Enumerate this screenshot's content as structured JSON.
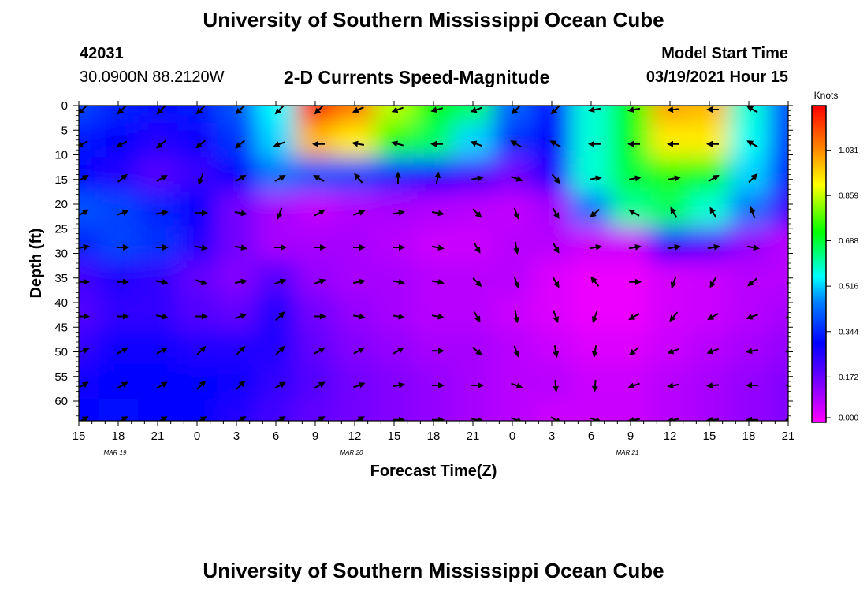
{
  "header": {
    "title": "University of Southern Mississippi Ocean Cube",
    "footer_title": "University of Southern Mississippi Ocean Cube",
    "station_id": "42031",
    "station_coords": "30.0900N 88.2120W",
    "plot_title": "2-D Currents Speed-Magnitude",
    "model_start_label": "Model Start Time",
    "model_start_value": "03/19/2021 Hour 15"
  },
  "chart_data": {
    "type": "heatmap",
    "title": "2-D Currents Speed-Magnitude",
    "xlabel": "Forecast Time(Z)",
    "ylabel": "Depth (ft)",
    "x_tick_labels": [
      "15",
      "18",
      "21",
      "0",
      "3",
      "6",
      "9",
      "12",
      "15",
      "18",
      "21",
      "0",
      "3",
      "6",
      "9",
      "12",
      "15",
      "18",
      "21"
    ],
    "x_date_labels": [
      {
        "label": "MAR 19",
        "tick_index": 1
      },
      {
        "label": "MAR 20",
        "tick_index": 7
      },
      {
        "label": "MAR 21",
        "tick_index": 14
      }
    ],
    "y_ticks": [
      0,
      5,
      10,
      15,
      20,
      25,
      30,
      35,
      40,
      45,
      50,
      55,
      60
    ],
    "ylim": [
      0,
      64
    ],
    "y_inverted": true,
    "colorbar": {
      "label": "Knots",
      "ticks": [
        "1.031",
        "0.859",
        "0.688",
        "0.516",
        "0.344",
        "0.172",
        "0.000"
      ],
      "range": [
        0,
        1.2
      ]
    },
    "depth_samples": [
      0,
      7,
      14,
      21,
      28,
      35,
      42,
      49,
      56,
      63
    ],
    "time_samples_hours": [
      0,
      3,
      6,
      9,
      12,
      15,
      18,
      21,
      24,
      27,
      30,
      33,
      36,
      39,
      42,
      45,
      48,
      51,
      54
    ],
    "speed_knots": [
      [
        0.38,
        0.34,
        0.32,
        0.33,
        0.4,
        0.55,
        1.15,
        1.05,
        0.85,
        0.72,
        0.66,
        0.42,
        0.33,
        0.58,
        0.72,
        1.0,
        0.98,
        0.58,
        0.4
      ],
      [
        0.33,
        0.3,
        0.26,
        0.28,
        0.36,
        0.52,
        0.98,
        0.92,
        0.74,
        0.66,
        0.52,
        0.36,
        0.3,
        0.58,
        0.7,
        0.92,
        0.92,
        0.56,
        0.38
      ],
      [
        0.3,
        0.26,
        0.2,
        0.23,
        0.3,
        0.44,
        0.4,
        0.38,
        0.34,
        0.3,
        0.22,
        0.16,
        0.26,
        0.58,
        0.68,
        0.74,
        0.7,
        0.52,
        0.34
      ],
      [
        0.4,
        0.38,
        0.34,
        0.3,
        0.16,
        0.1,
        0.07,
        0.09,
        0.1,
        0.09,
        0.08,
        0.07,
        0.1,
        0.44,
        0.62,
        0.66,
        0.58,
        0.44,
        0.22
      ],
      [
        0.34,
        0.38,
        0.36,
        0.26,
        0.16,
        0.1,
        0.1,
        0.1,
        0.08,
        0.06,
        0.06,
        0.08,
        0.08,
        0.06,
        0.06,
        0.26,
        0.2,
        0.12,
        0.08
      ],
      [
        0.22,
        0.26,
        0.24,
        0.18,
        0.14,
        0.2,
        0.12,
        0.1,
        0.1,
        0.08,
        0.08,
        0.08,
        0.04,
        0.02,
        0.02,
        0.05,
        0.06,
        0.08,
        0.08
      ],
      [
        0.2,
        0.24,
        0.24,
        0.2,
        0.18,
        0.26,
        0.16,
        0.12,
        0.1,
        0.08,
        0.08,
        0.06,
        0.04,
        0.02,
        0.02,
        0.05,
        0.06,
        0.08,
        0.1
      ],
      [
        0.24,
        0.28,
        0.28,
        0.26,
        0.26,
        0.26,
        0.18,
        0.14,
        0.12,
        0.1,
        0.1,
        0.08,
        0.06,
        0.04,
        0.04,
        0.06,
        0.08,
        0.1,
        0.12
      ],
      [
        0.28,
        0.3,
        0.3,
        0.3,
        0.28,
        0.24,
        0.2,
        0.16,
        0.14,
        0.12,
        0.1,
        0.08,
        0.08,
        0.06,
        0.06,
        0.08,
        0.1,
        0.12,
        0.14
      ],
      [
        0.3,
        0.32,
        0.3,
        0.3,
        0.26,
        0.22,
        0.18,
        0.16,
        0.14,
        0.12,
        0.1,
        0.08,
        0.06,
        0.06,
        0.06,
        0.08,
        0.1,
        0.12,
        0.14
      ]
    ],
    "direction_deg": [
      [
        225,
        225,
        225,
        225,
        225,
        225,
        225,
        245,
        250,
        255,
        250,
        225,
        225,
        260,
        260,
        265,
        270,
        300,
        315
      ],
      [
        240,
        240,
        230,
        230,
        230,
        250,
        270,
        280,
        285,
        270,
        290,
        300,
        300,
        270,
        270,
        270,
        270,
        300,
        320
      ],
      [
        60,
        50,
        60,
        200,
        60,
        60,
        300,
        320,
        0,
        10,
        80,
        110,
        140,
        80,
        80,
        80,
        60,
        45,
        30
      ],
      [
        60,
        70,
        80,
        90,
        100,
        200,
        60,
        70,
        80,
        100,
        135,
        160,
        150,
        230,
        300,
        330,
        330,
        340,
        350
      ],
      [
        80,
        90,
        90,
        100,
        100,
        90,
        90,
        90,
        90,
        100,
        150,
        170,
        150,
        80,
        80,
        80,
        80,
        100,
        100
      ],
      [
        90,
        90,
        100,
        110,
        80,
        70,
        70,
        80,
        100,
        100,
        135,
        160,
        150,
        320,
        90,
        200,
        210,
        230,
        250
      ],
      [
        90,
        90,
        100,
        90,
        70,
        45,
        90,
        100,
        100,
        100,
        150,
        170,
        160,
        200,
        240,
        220,
        240,
        250,
        260
      ],
      [
        70,
        60,
        60,
        45,
        45,
        45,
        60,
        60,
        60,
        90,
        130,
        160,
        170,
        190,
        230,
        250,
        250,
        260,
        260
      ],
      [
        60,
        60,
        60,
        45,
        45,
        60,
        60,
        70,
        80,
        90,
        90,
        110,
        175,
        185,
        250,
        260,
        265,
        270,
        270
      ],
      [
        60,
        60,
        60,
        60,
        60,
        60,
        60,
        60,
        90,
        90,
        100,
        110,
        120,
        110,
        260,
        260,
        265,
        270,
        270
      ]
    ]
  }
}
